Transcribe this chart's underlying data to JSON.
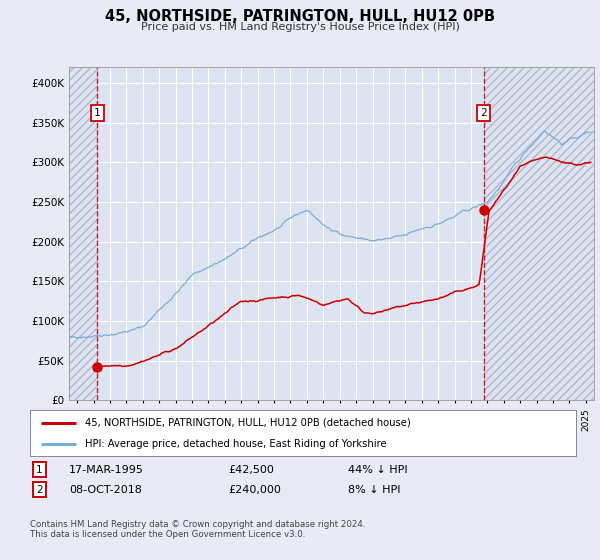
{
  "title": "45, NORTHSIDE, PATRINGTON, HULL, HU12 0PB",
  "subtitle": "Price paid vs. HM Land Registry's House Price Index (HPI)",
  "xlim": [
    1993.5,
    2025.5
  ],
  "ylim": [
    0,
    420000
  ],
  "yticks": [
    0,
    50000,
    100000,
    150000,
    200000,
    250000,
    300000,
    350000,
    400000
  ],
  "background_color": "#e8eaf6",
  "plot_bg_color": "#dde3f0",
  "grid_color": "#ffffff",
  "sale1_date": 1995.21,
  "sale1_price": 42500,
  "sale1_label": "1",
  "sale2_date": 2018.77,
  "sale2_price": 240000,
  "sale2_label": "2",
  "property_line_color": "#cc0000",
  "hpi_line_color": "#7aaed6",
  "legend1_text": "45, NORTHSIDE, PATRINGTON, HULL, HU12 0PB (detached house)",
  "legend2_text": "HPI: Average price, detached house, East Riding of Yorkshire",
  "table_row1": [
    "1",
    "17-MAR-1995",
    "£42,500",
    "44% ↓ HPI"
  ],
  "table_row2": [
    "2",
    "08-OCT-2018",
    "£240,000",
    "8% ↓ HPI"
  ],
  "footnote1": "Contains HM Land Registry data © Crown copyright and database right 2024.",
  "footnote2": "This data is licensed under the Open Government Licence v3.0."
}
